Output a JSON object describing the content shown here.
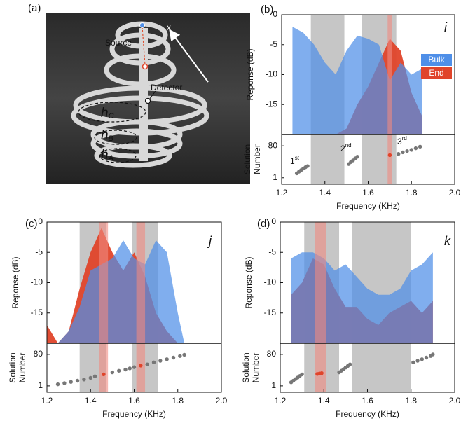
{
  "photo": {
    "panel_label": "(a)",
    "source": "Source",
    "detector": "Detector",
    "axis": "x",
    "heights": [
      {
        "text": "h",
        "sub": "C"
      },
      {
        "text": "h",
        "sub": "B"
      },
      {
        "text": "h",
        "sub": "A"
      }
    ]
  },
  "chart_data": [
    {
      "type": "area",
      "panel_label": "(b)",
      "mode_label": "i",
      "ylabel": "Reponse (dB)",
      "xlim": [
        1.2,
        2.0
      ],
      "ylim": [
        -20,
        0
      ],
      "yticks": [
        -15,
        -10,
        -5,
        0
      ],
      "legend": "upper right",
      "gray_bands": [
        [
          1.335,
          1.49
        ],
        [
          1.57,
          1.73
        ]
      ],
      "red_bands": [
        [
          1.69,
          1.71
        ]
      ],
      "band_colors": {
        "gray": "#c6c6c6",
        "red": "#f08a80"
      },
      "series": [
        {
          "name": "Bulk",
          "color": "#4f8fe8",
          "x": [
            1.25,
            1.3,
            1.35,
            1.4,
            1.45,
            1.5,
            1.55,
            1.6,
            1.65,
            1.7,
            1.75,
            1.8,
            1.85
          ],
          "values": [
            -2,
            -3,
            -5,
            -8,
            -10,
            -6,
            -3.5,
            -4,
            -5,
            -11,
            -8,
            -10,
            -9
          ]
        },
        {
          "name": "End",
          "color": "#e0442a",
          "x": [
            1.25,
            1.3,
            1.35,
            1.4,
            1.45,
            1.5,
            1.55,
            1.6,
            1.65,
            1.7,
            1.75,
            1.8,
            1.85
          ],
          "values": [
            -20,
            -20,
            -20,
            -20,
            -20,
            -19,
            -15,
            -12,
            -8,
            -4,
            -6,
            -13,
            -17
          ]
        }
      ]
    },
    {
      "type": "scatter",
      "ylabel": [
        "Solution",
        "Number"
      ],
      "xlabel": "Frequency (KHz)",
      "xlim": [
        1.2,
        2.0
      ],
      "xticks": [
        1.2,
        1.4,
        1.6,
        1.8,
        {
          "value": 2,
          "label": "2.0"
        }
      ],
      "ylim": [
        -15,
        108
      ],
      "yticks": [
        1,
        80
      ],
      "color": "#777777",
      "end_color": "#e0442a",
      "x": [
        1.27,
        1.28,
        1.29,
        1.3,
        1.31,
        1.32,
        1.51,
        1.52,
        1.53,
        1.54,
        1.55,
        1.74,
        1.76,
        1.78,
        1.8,
        1.82,
        1.84
      ],
      "values": [
        12,
        16,
        20,
        24,
        27,
        30,
        35,
        40,
        44,
        49,
        53,
        60,
        64,
        67,
        70,
        74,
        78
      ],
      "end_x": [
        1.7
      ],
      "end_values": [
        57
      ],
      "annotations": [
        {
          "text": "1",
          "sup": "st"
        },
        {
          "text": "2",
          "sup": "nd"
        },
        {
          "text": "3",
          "sup": "rd"
        }
      ]
    },
    {
      "type": "area",
      "panel_label": "(c)",
      "mode_label": "j",
      "ylabel": "Reponse (dB)",
      "xlim": [
        1.2,
        2.0
      ],
      "ylim": [
        -20,
        0
      ],
      "yticks": [
        -15,
        -10,
        -5,
        0
      ],
      "gray_bands": [
        [
          1.35,
          1.47
        ],
        [
          1.59,
          1.71
        ]
      ],
      "red_bands": [
        [
          1.44,
          1.48
        ],
        [
          1.61,
          1.65
        ]
      ],
      "band_colors": {
        "gray": "#c6c6c6",
        "red": "#f08a80"
      },
      "series": [
        {
          "color": "#4f8fe8",
          "x": [
            1.2,
            1.25,
            1.3,
            1.35,
            1.4,
            1.45,
            1.5,
            1.55,
            1.6,
            1.65,
            1.7,
            1.75,
            1.8,
            1.83
          ],
          "values": [
            -20,
            -20,
            -18,
            -14,
            -8,
            -7,
            -6,
            -3,
            -6,
            -7,
            -3,
            -5,
            -15,
            -20
          ]
        },
        {
          "color": "#e0442a",
          "x": [
            1.2,
            1.25,
            1.3,
            1.35,
            1.4,
            1.45,
            1.5,
            1.55,
            1.6,
            1.65,
            1.7,
            1.75,
            1.8,
            1.83
          ],
          "values": [
            -17,
            -20,
            -18,
            -11,
            -5,
            -1,
            -5,
            -8,
            -5,
            -9,
            -15,
            -18,
            -20,
            -20
          ]
        }
      ]
    },
    {
      "type": "scatter",
      "ylabel": [
        "Solution",
        "Number"
      ],
      "xlabel": "Frequency (KHz)",
      "xlim": [
        1.2,
        2.0
      ],
      "xticks": [
        1.2,
        1.4,
        1.6,
        1.8,
        {
          "value": 2,
          "label": "2.0"
        }
      ],
      "ylim": [
        -15,
        108
      ],
      "yticks": [
        1,
        80
      ],
      "color": "#777777",
      "end_color": "#e0442a",
      "x": [
        1.25,
        1.28,
        1.31,
        1.34,
        1.37,
        1.4,
        1.42,
        1.5,
        1.53,
        1.56,
        1.58,
        1.6,
        1.66,
        1.69,
        1.72,
        1.75,
        1.78,
        1.81,
        1.83
      ],
      "values": [
        5,
        8,
        11,
        14,
        17,
        21,
        25,
        35,
        39,
        42,
        45,
        48,
        55,
        60,
        64,
        68,
        72,
        76,
        79
      ],
      "end_x": [
        1.46,
        1.63
      ],
      "end_values": [
        30,
        52
      ]
    },
    {
      "type": "area",
      "panel_label": "(d)",
      "mode_label": "k",
      "ylabel": "Reponse (dB)",
      "xlim": [
        1.2,
        2.0
      ],
      "ylim": [
        -20,
        0
      ],
      "yticks": [
        -15,
        -10,
        -5,
        0
      ],
      "gray_bands": [
        [
          1.31,
          1.47
        ],
        [
          1.53,
          1.8
        ]
      ],
      "red_bands": [
        [
          1.36,
          1.41
        ]
      ],
      "band_colors": {
        "gray": "#c6c6c6",
        "red": "#f08a80"
      },
      "series": [
        {
          "color": "#4f8fe8",
          "x": [
            1.25,
            1.3,
            1.35,
            1.4,
            1.45,
            1.5,
            1.55,
            1.6,
            1.65,
            1.7,
            1.75,
            1.8,
            1.85,
            1.9
          ],
          "values": [
            -6,
            -5,
            -5,
            -6,
            -8,
            -7,
            -9,
            -11,
            -12,
            -12,
            -11,
            -8,
            -7,
            -5
          ]
        },
        {
          "color": "#e0442a",
          "x": [
            1.25,
            1.3,
            1.35,
            1.4,
            1.45,
            1.5,
            1.55,
            1.6,
            1.65,
            1.7,
            1.75,
            1.8,
            1.85,
            1.9
          ],
          "values": [
            -12,
            -10,
            -6,
            -7,
            -11,
            -14,
            -14,
            -16,
            -17,
            -15,
            -14,
            -13,
            -15,
            -13
          ]
        }
      ]
    },
    {
      "type": "scatter",
      "ylabel": [
        "Solution",
        "Number"
      ],
      "xlabel": "Frequency (KHz)",
      "xlim": [
        1.2,
        2.0
      ],
      "xticks": [
        1.2,
        1.4,
        1.6,
        1.8,
        {
          "value": 2,
          "label": "2.0"
        }
      ],
      "ylim": [
        -15,
        108
      ],
      "yticks": [
        1,
        80
      ],
      "color": "#777777",
      "end_color": "#e0442a",
      "x": [
        1.25,
        1.26,
        1.27,
        1.28,
        1.29,
        1.3,
        1.47,
        1.48,
        1.49,
        1.5,
        1.51,
        1.52,
        1.81,
        1.83,
        1.85,
        1.87,
        1.89,
        1.9
      ],
      "values": [
        10,
        14,
        18,
        22,
        26,
        30,
        35,
        39,
        43,
        47,
        51,
        55,
        60,
        64,
        68,
        72,
        76,
        80
      ],
      "end_x": [
        1.37,
        1.38,
        1.39
      ],
      "end_values": [
        31,
        32,
        33
      ]
    }
  ]
}
